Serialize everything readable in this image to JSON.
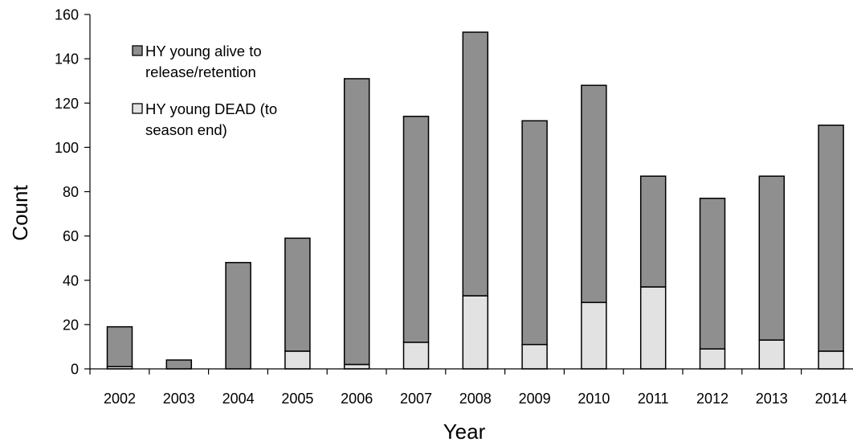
{
  "chart_data": {
    "type": "bar",
    "stacked": true,
    "categories": [
      "2002",
      "2003",
      "2004",
      "2005",
      "2006",
      "2007",
      "2008",
      "2009",
      "2010",
      "2011",
      "2012",
      "2013",
      "2014"
    ],
    "series": [
      {
        "name": "HY young DEAD (to season end)",
        "color": "#e2e2e2",
        "values": [
          1,
          0,
          0,
          8,
          2,
          12,
          33,
          11,
          30,
          37,
          9,
          13,
          8
        ]
      },
      {
        "name": "HY young alive to release/retention",
        "color": "#8f8f8f",
        "values": [
          18,
          4,
          48,
          51,
          129,
          102,
          119,
          101,
          98,
          50,
          68,
          74,
          102
        ]
      }
    ],
    "xlabel": "Year",
    "ylabel": "Count",
    "ylim": [
      0,
      160
    ],
    "yticks": [
      "0",
      "20",
      "40",
      "60",
      "80",
      "100",
      "120",
      "140",
      "160"
    ],
    "grid": false,
    "legend_position": "top-left",
    "legend": [
      {
        "lines": [
          "HY young alive to",
          "release/retention"
        ],
        "color": "#8f8f8f"
      },
      {
        "lines": [
          "HY young DEAD (to",
          "season end)"
        ],
        "color": "#e2e2e2"
      }
    ]
  }
}
